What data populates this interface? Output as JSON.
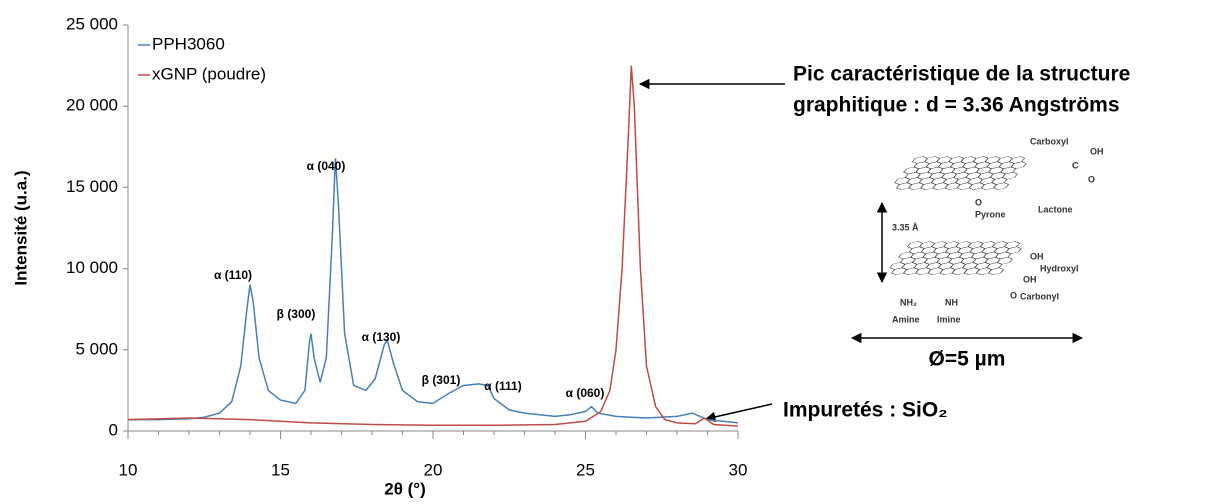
{
  "chart_data": {
    "type": "line",
    "y_label": "Intensité (u.a.)",
    "x_label": "2θ (°)",
    "xlim": [
      10,
      30
    ],
    "xticks": [
      10,
      15,
      20,
      25,
      30
    ],
    "ylim": [
      0,
      25000
    ],
    "yticks": [
      0,
      {
        "value": 5000,
        "label": "5 000"
      },
      {
        "value": 10000,
        "label": "10 000"
      },
      {
        "value": 15000,
        "label": "15 000"
      },
      {
        "value": 20000,
        "label": "20 000"
      },
      {
        "value": 25000,
        "label": "25 000"
      }
    ],
    "legend": "top-left",
    "series": [
      {
        "name": "PPH3060",
        "color": "#4a7ebb",
        "x": [
          10,
          11,
          12,
          12.5,
          13,
          13.4,
          13.7,
          13.9,
          14.0,
          14.1,
          14.3,
          14.6,
          15,
          15.5,
          15.8,
          15.95,
          16.0,
          16.1,
          16.3,
          16.5,
          16.7,
          16.8,
          16.9,
          17.1,
          17.4,
          17.8,
          18.1,
          18.4,
          18.5,
          18.7,
          19.0,
          19.5,
          20,
          20.5,
          21,
          21.5,
          21.8,
          22.0,
          22.5,
          23,
          24,
          24.5,
          25,
          25.2,
          25.4,
          26,
          27,
          28,
          28.5,
          29,
          30
        ],
        "values": [
          700,
          700,
          750,
          850,
          1100,
          1800,
          4000,
          7500,
          9000,
          8000,
          4500,
          2500,
          1900,
          1700,
          2500,
          5500,
          6000,
          4500,
          3000,
          4500,
          12000,
          16800,
          14000,
          6000,
          2800,
          2500,
          3200,
          5300,
          5600,
          4200,
          2500,
          1800,
          1700,
          2300,
          2800,
          2900,
          2800,
          2000,
          1300,
          1100,
          900,
          1000,
          1200,
          1500,
          1100,
          900,
          800,
          900,
          1100,
          700,
          500
        ]
      },
      {
        "name": "xGNP (poudre)",
        "color": "#be4b48",
        "x": [
          10,
          12,
          14,
          16,
          18,
          20,
          22,
          24,
          25,
          25.5,
          25.8,
          26.0,
          26.2,
          26.4,
          26.5,
          26.6,
          26.8,
          27.0,
          27.3,
          27.6,
          28,
          28.6,
          28.9,
          29.2,
          30
        ],
        "values": [
          700,
          800,
          700,
          500,
          400,
          350,
          350,
          400,
          600,
          1200,
          2500,
          5000,
          10000,
          18000,
          22500,
          20000,
          10000,
          4000,
          1500,
          700,
          500,
          450,
          800,
          400,
          300
        ]
      }
    ],
    "annotations": [
      "α (110)",
      "β (300)",
      "α (040)",
      "α (130)",
      "β (301)",
      "α (111)",
      "α (060)"
    ],
    "peak_note": [
      "Pic caractéristique de la structure",
      "graphitique : d = 3.36 Angströms"
    ],
    "impurity_note": "Impuretés : SiO₂"
  },
  "diagram": {
    "labels": [
      "Carboxyl",
      "OH",
      "C",
      "O",
      "O",
      "Pyrone",
      "Lactone",
      "3.35 Å",
      "OH",
      "Hydroxyl",
      "OH",
      "O",
      "Carbonyl",
      "NH₂",
      "NH",
      "Amine",
      "Imine"
    ],
    "size": "Ø=5 µm"
  }
}
